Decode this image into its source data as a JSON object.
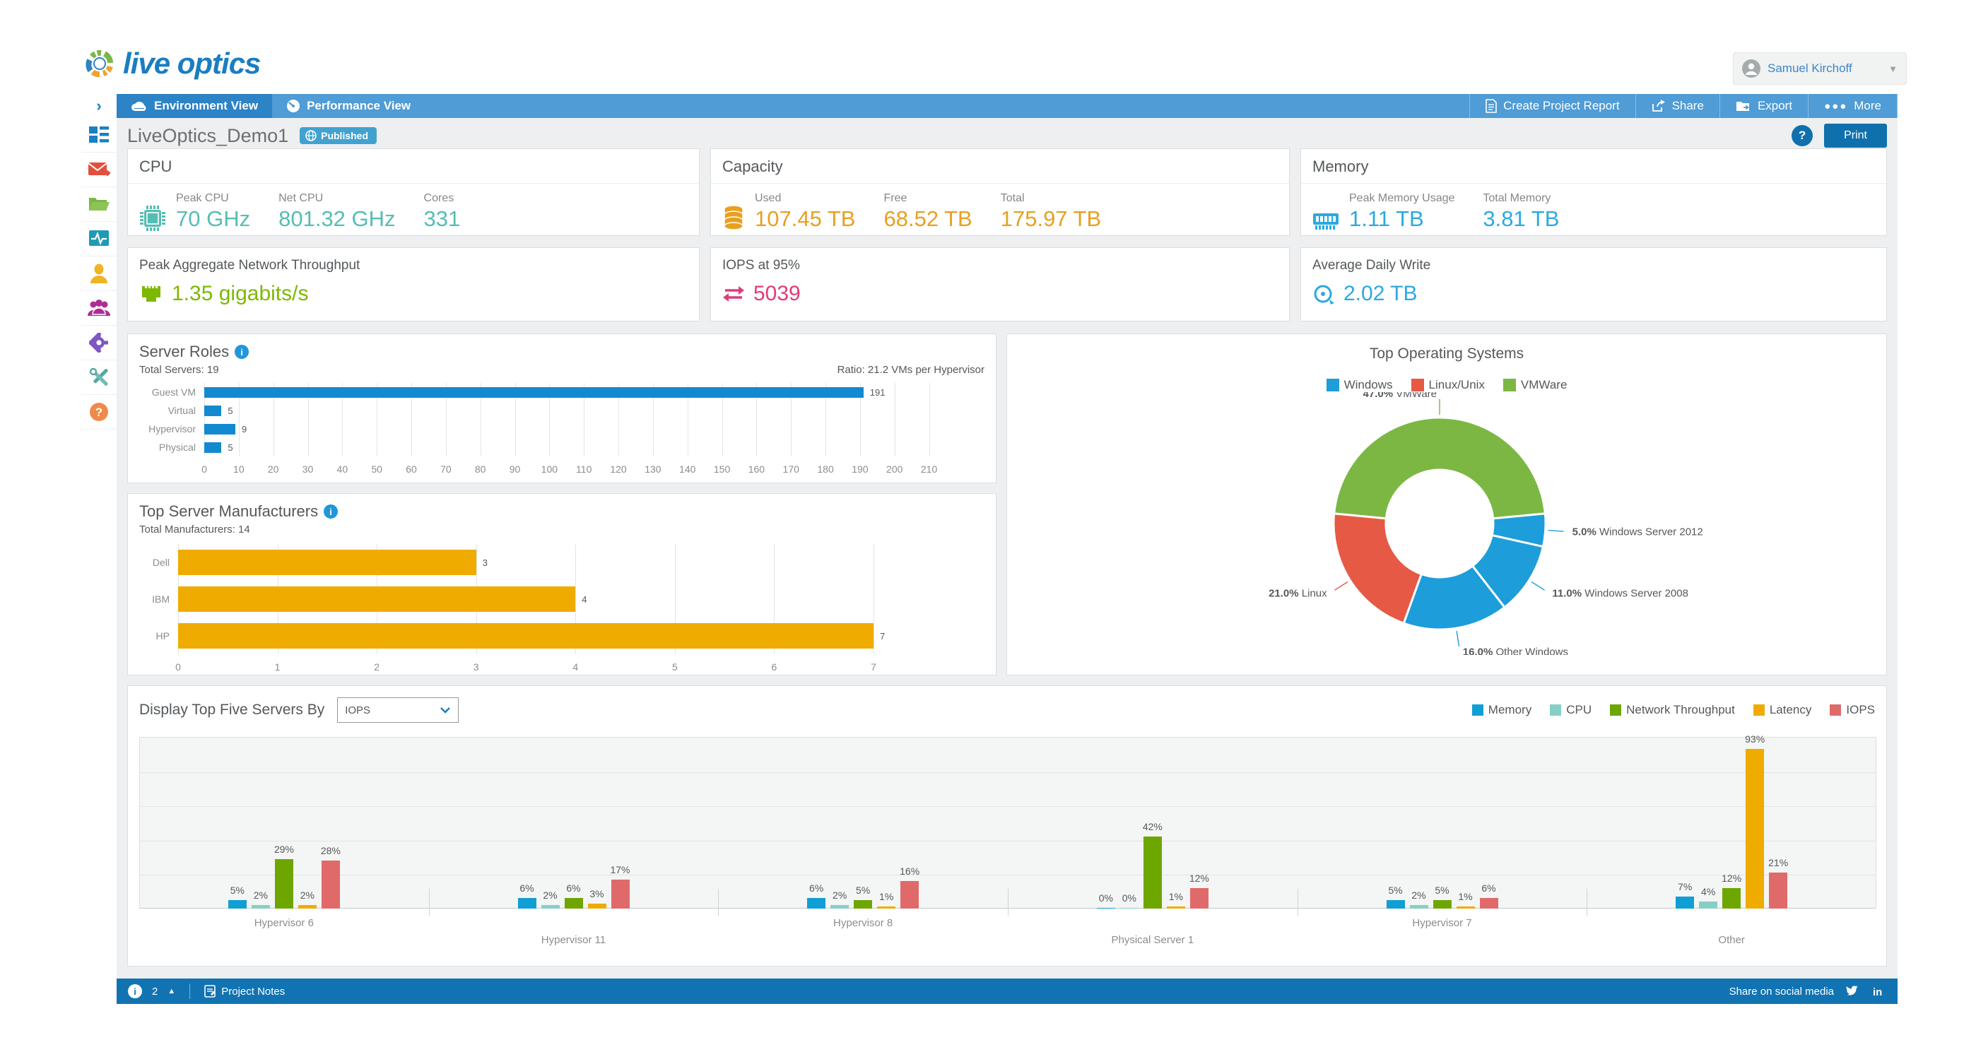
{
  "brand": {
    "logo_text": "live optics"
  },
  "header": {
    "user_name": "Samuel Kirchoff"
  },
  "nav": {
    "tabs": [
      {
        "label": "Environment View"
      },
      {
        "label": "Performance View"
      }
    ],
    "actions": [
      {
        "label": "Create Project Report"
      },
      {
        "label": "Share"
      },
      {
        "label": "Export"
      },
      {
        "label": "More"
      }
    ]
  },
  "page": {
    "title": "LiveOptics_Demo1",
    "badge_label": "Published",
    "print_label": "Print",
    "help_label": "?"
  },
  "stat_cards": {
    "cpu": {
      "title": "CPU",
      "accent": "#56bdb4",
      "metrics": [
        {
          "label": "Peak CPU",
          "value": "70 GHz"
        },
        {
          "label": "Net CPU",
          "value": "801.32 GHz"
        },
        {
          "label": "Cores",
          "value": "331"
        }
      ]
    },
    "capacity": {
      "title": "Capacity",
      "accent": "#e8a01f",
      "metrics": [
        {
          "label": "Used",
          "value": "107.45 TB"
        },
        {
          "label": "Free",
          "value": "68.52 TB"
        },
        {
          "label": "Total",
          "value": "175.97 TB"
        }
      ]
    },
    "memory": {
      "title": "Memory",
      "accent": "#2ba9e0",
      "metrics": [
        {
          "label": "Peak Memory Usage",
          "value": "1.11 TB"
        },
        {
          "label": "Total Memory",
          "value": "3.81 TB"
        }
      ]
    },
    "network": {
      "title": "Peak Aggregate Network Throughput",
      "accent": "#7cb900",
      "value": "1.35 gigabits/s"
    },
    "iops": {
      "title": "IOPS at 95%",
      "accent": "#e23a7c",
      "value": "5039"
    },
    "daily_write": {
      "title": "Average Daily Write",
      "accent": "#2ba9e0",
      "value": "2.02 TB"
    }
  },
  "top_servers_controls": {
    "control_label": "Display Top Five Servers By",
    "dropdown_value": "IOPS"
  },
  "footer": {
    "notes_count": "2",
    "notes_label": "Project Notes",
    "share_label": "Share on social media"
  },
  "chart_data": [
    {
      "id": "server_roles",
      "type": "bar",
      "orientation": "horizontal",
      "title": "Server Roles",
      "subtitle_left": "Total Servers: 19",
      "subtitle_right": "Ratio: 21.2 VMs per Hypervisor",
      "categories": [
        "Guest VM",
        "Virtual",
        "Hypervisor",
        "Physical"
      ],
      "values": [
        191,
        5,
        9,
        5
      ],
      "xlim": [
        0,
        210
      ],
      "tick_step": 10,
      "color": "#1389cf",
      "grid": true
    },
    {
      "id": "top_server_manufacturers",
      "type": "bar",
      "orientation": "horizontal",
      "title": "Top Server Manufacturers",
      "subtitle_left": "Total Manufacturers: 14",
      "categories": [
        "Dell",
        "IBM",
        "HP"
      ],
      "values": [
        3,
        4,
        7
      ],
      "xlim": [
        0,
        7
      ],
      "tick_step": 1,
      "color": "#f0ab00",
      "grid": true
    },
    {
      "id": "top_operating_systems",
      "type": "pie",
      "donut": true,
      "title": "Top Operating Systems",
      "legend_position": "top",
      "legend": [
        {
          "label": "Windows",
          "color": "#1d9dd9"
        },
        {
          "label": "Linux/Unix",
          "color": "#e65a45"
        },
        {
          "label": "VMWare",
          "color": "#7cb743"
        }
      ],
      "slices": [
        {
          "label": "VMWare",
          "pct": 47.0,
          "color": "#7cb743"
        },
        {
          "label": "Windows Server 2012",
          "pct": 5.0,
          "color": "#1d9dd9"
        },
        {
          "label": "Windows Server 2008",
          "pct": 11.0,
          "color": "#1d9dd9"
        },
        {
          "label": "Other Windows",
          "pct": 16.0,
          "color": "#1d9dd9"
        },
        {
          "label": "Linux",
          "pct": 21.0,
          "color": "#e65a45"
        }
      ]
    },
    {
      "id": "top_five_servers",
      "type": "bar",
      "grouped": true,
      "unit": "%",
      "ylim": [
        0,
        100
      ],
      "grid_step": 20,
      "legend_position": "top-right",
      "categories": [
        "Hypervisor 6",
        "Hypervisor 11",
        "Hypervisor 8",
        "Physical Server 1",
        "Hypervisor 7",
        "Other"
      ],
      "series": [
        {
          "name": "Memory",
          "color": "#109fd4",
          "values": [
            5,
            6,
            6,
            0,
            5,
            7
          ]
        },
        {
          "name": "CPU",
          "color": "#85cfc6",
          "values": [
            2,
            2,
            2,
            0,
            2,
            4
          ]
        },
        {
          "name": "Network Throughput",
          "color": "#6ea600",
          "values": [
            29,
            6,
            5,
            42,
            5,
            12
          ]
        },
        {
          "name": "Latency",
          "color": "#f0ab00",
          "values": [
            2,
            3,
            1,
            1,
            1,
            93
          ]
        },
        {
          "name": "IOPS",
          "color": "#e06a6a",
          "values": [
            28,
            17,
            16,
            12,
            6,
            21
          ]
        }
      ]
    }
  ]
}
